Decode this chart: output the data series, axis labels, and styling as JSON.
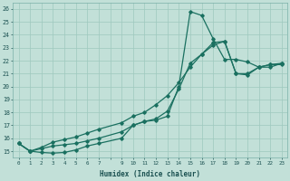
{
  "xlabel": "Humidex (Indice chaleur)",
  "xlim": [
    -0.5,
    23.5
  ],
  "ylim": [
    14.5,
    26.5
  ],
  "yticks": [
    15,
    16,
    17,
    18,
    19,
    20,
    21,
    22,
    23,
    24,
    25,
    26
  ],
  "bg_color": "#c2e0d8",
  "grid_color": "#9ec8be",
  "line_color": "#1a7060",
  "line1_x": [
    0,
    1,
    2,
    3,
    4,
    5,
    6,
    7,
    9,
    10,
    11,
    12,
    13,
    14,
    15,
    16,
    17,
    18,
    19,
    20,
    21,
    22,
    23
  ],
  "line1_y": [
    15.6,
    15.0,
    14.9,
    14.85,
    14.9,
    15.1,
    15.4,
    15.6,
    16.0,
    17.0,
    17.3,
    17.4,
    17.7,
    20.0,
    25.8,
    25.5,
    23.7,
    22.1,
    22.1,
    21.9,
    21.5,
    21.7,
    21.7
  ],
  "line2_x": [
    0,
    1,
    2,
    3,
    4,
    5,
    6,
    7,
    9,
    10,
    11,
    12,
    13,
    14,
    15,
    16,
    17,
    18,
    19,
    20,
    21,
    22,
    23
  ],
  "line2_y": [
    15.6,
    15.0,
    15.2,
    15.4,
    15.5,
    15.6,
    15.8,
    16.0,
    16.5,
    17.0,
    17.3,
    17.5,
    18.1,
    19.8,
    21.8,
    22.5,
    23.4,
    23.5,
    21.0,
    20.9,
    21.5,
    21.5,
    21.8
  ],
  "line3_x": [
    0,
    1,
    2,
    3,
    4,
    5,
    6,
    7,
    9,
    10,
    11,
    12,
    13,
    14,
    15,
    16,
    17,
    18,
    19,
    20,
    21,
    22,
    23
  ],
  "line3_y": [
    15.6,
    15.0,
    15.3,
    15.7,
    15.9,
    16.1,
    16.4,
    16.7,
    17.2,
    17.7,
    18.0,
    18.6,
    19.3,
    20.3,
    21.5,
    22.5,
    23.2,
    23.5,
    21.0,
    21.0,
    21.5,
    21.7,
    21.8
  ]
}
